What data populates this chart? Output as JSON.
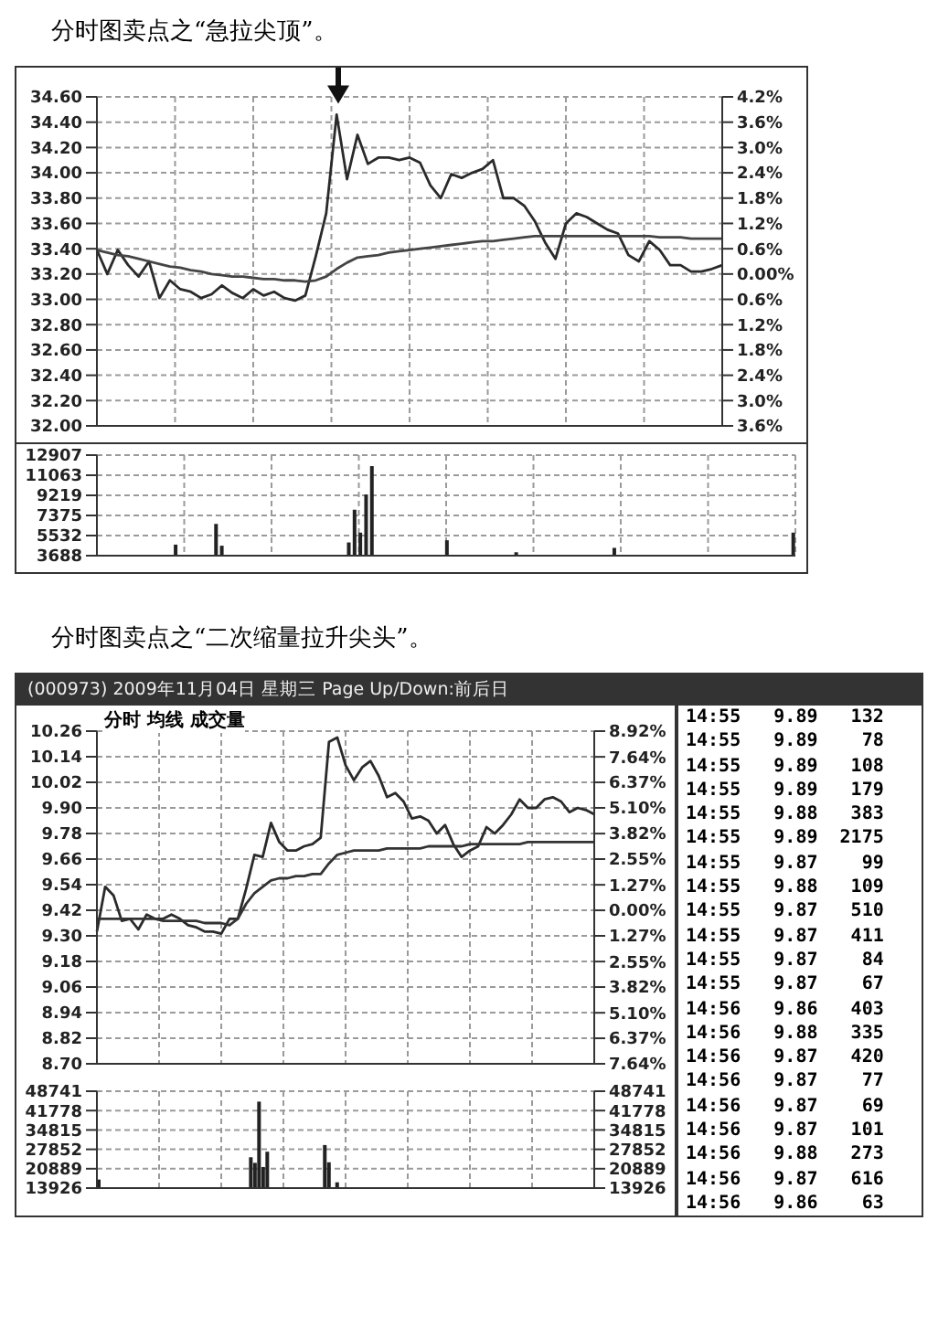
{
  "chart_data": [
    {
      "type": "line",
      "title": "分时图卖点之“急拉尖顶”。",
      "categories": [
        null,
        null,
        null,
        null,
        null,
        null,
        null,
        null,
        null,
        null,
        null,
        null,
        null,
        null,
        null,
        null,
        null,
        null,
        null,
        null,
        null,
        null,
        null,
        null,
        null,
        null,
        null,
        null,
        null,
        null,
        null,
        null,
        null,
        null,
        null,
        null,
        null,
        null,
        null,
        null,
        null,
        null,
        null,
        null,
        null,
        null,
        null,
        null,
        null,
        null,
        null,
        null,
        null,
        null,
        null,
        null,
        null,
        null,
        null,
        null,
        null
      ],
      "grid": true,
      "ylim": [
        32.0,
        34.6
      ],
      "yticks": [
        {
          "value": 34.6,
          "label": "34.60"
        },
        {
          "value": 34.4,
          "label": "34.40"
        },
        {
          "value": 34.2,
          "label": "34.20"
        },
        {
          "value": 34.0,
          "label": "34.00"
        },
        {
          "value": 33.8,
          "label": "33.80"
        },
        {
          "value": 33.6,
          "label": "33.60"
        },
        {
          "value": 33.4,
          "label": "33.40"
        },
        {
          "value": 33.2,
          "label": "33.20"
        },
        {
          "value": 33.0,
          "label": "33.00"
        },
        {
          "value": 32.8,
          "label": "32.80"
        },
        {
          "value": 32.6,
          "label": "32.60"
        },
        {
          "value": 32.4,
          "label": "32.40"
        },
        {
          "value": 32.2,
          "label": "32.20"
        },
        {
          "value": 32.0,
          "label": "32.00"
        }
      ],
      "y2lim": [
        -3.6,
        4.2
      ],
      "y2ticks": [
        {
          "value": 4.2,
          "label": "4.2%"
        },
        {
          "value": 3.6,
          "label": "3.6%"
        },
        {
          "value": 3.0,
          "label": "3.0%"
        },
        {
          "value": 2.4,
          "label": "2.4%"
        },
        {
          "value": 1.8,
          "label": "1.8%"
        },
        {
          "value": 1.2,
          "label": "1.2%"
        },
        {
          "value": 0.6,
          "label": "0.6%"
        },
        {
          "value": 0,
          "label": "0.00%"
        },
        {
          "value": -0.6,
          "label": "0.6%"
        },
        {
          "value": -1.2,
          "label": "1.2%"
        },
        {
          "value": -1.8,
          "label": "1.8%"
        },
        {
          "value": -2.4,
          "label": "2.4%"
        },
        {
          "value": -3.0,
          "label": "3.0%"
        },
        {
          "value": -3.6,
          "label": "3.6%"
        }
      ],
      "series": [
        {
          "color": "#2a2a2a",
          "values": [
            33.39,
            33.2,
            33.39,
            33.27,
            33.18,
            33.3,
            33.01,
            33.15,
            33.08,
            33.06,
            33.01,
            33.04,
            33.11,
            33.05,
            33.01,
            33.08,
            33.03,
            33.06,
            33.01,
            32.99,
            33.03,
            33.34,
            33.68,
            34.46,
            33.95,
            34.3,
            34.07,
            34.12,
            34.12,
            34.1,
            34.12,
            34.08,
            33.9,
            33.8,
            33.99,
            33.96,
            34.0,
            34.03,
            34.1,
            33.8,
            33.8,
            33.74,
            33.62,
            33.45,
            33.32,
            33.6,
            33.68,
            33.65,
            33.6,
            33.55,
            33.52,
            33.35,
            33.3,
            33.46,
            33.39,
            33.27,
            33.27,
            33.22,
            33.22,
            33.24,
            33.27
          ]
        },
        {
          "color": "#444444",
          "values": [
            33.39,
            33.37,
            33.35,
            33.34,
            33.32,
            33.3,
            33.28,
            33.26,
            33.25,
            33.23,
            33.22,
            33.2,
            33.19,
            33.18,
            33.18,
            33.17,
            33.16,
            33.16,
            33.15,
            33.15,
            33.14,
            33.15,
            33.18,
            33.24,
            33.29,
            33.33,
            33.34,
            33.35,
            33.37,
            33.38,
            33.39,
            33.4,
            33.41,
            33.42,
            33.43,
            33.44,
            33.45,
            33.46,
            33.46,
            33.47,
            33.48,
            33.49,
            33.5,
            33.5,
            33.5,
            33.5,
            33.5,
            33.5,
            33.5,
            33.5,
            33.5,
            33.5,
            33.5,
            33.5,
            33.49,
            33.49,
            33.49,
            33.48,
            33.48,
            33.48,
            33.48
          ]
        }
      ]
    },
    {
      "type": "bar",
      "categories": [
        null,
        null,
        null,
        null,
        null,
        null,
        null,
        null,
        null,
        null,
        null,
        null,
        null,
        null,
        null,
        null,
        null,
        null,
        null,
        null,
        null,
        null,
        null,
        null,
        null,
        null,
        null,
        null,
        null,
        null,
        null,
        null,
        null,
        null,
        null,
        null,
        null,
        null,
        null,
        null,
        null,
        null,
        null,
        null,
        null,
        null,
        null,
        null,
        null,
        null,
        null,
        null,
        null,
        null,
        null,
        null,
        null,
        null,
        null,
        null,
        null,
        null,
        null,
        null,
        null,
        null,
        null,
        null,
        null,
        null,
        null,
        null,
        null,
        null,
        null,
        null,
        null,
        null,
        null,
        null,
        null,
        null,
        null,
        null,
        null,
        null,
        null,
        null,
        null,
        null,
        null,
        null,
        null,
        null,
        null,
        null,
        null,
        null,
        null,
        null,
        null,
        null,
        null,
        null,
        null,
        null,
        null,
        null,
        null,
        null,
        null,
        null,
        null,
        null,
        null,
        null,
        null,
        null,
        null,
        null,
        null
      ],
      "values": [
        null,
        null,
        null,
        null,
        null,
        null,
        null,
        null,
        null,
        null,
        null,
        null,
        null,
        4700,
        null,
        null,
        null,
        null,
        null,
        null,
        6600,
        4600,
        null,
        null,
        null,
        null,
        null,
        null,
        null,
        null,
        null,
        null,
        null,
        null,
        null,
        null,
        null,
        null,
        null,
        null,
        null,
        null,
        null,
        4900,
        7900,
        5800,
        9300,
        11900,
        null,
        null,
        null,
        null,
        null,
        null,
        null,
        null,
        null,
        null,
        null,
        null,
        5100,
        null,
        null,
        null,
        null,
        null,
        null,
        null,
        null,
        null,
        null,
        null,
        4000,
        null,
        null,
        null,
        null,
        null,
        null,
        null,
        null,
        null,
        null,
        null,
        null,
        null,
        null,
        null,
        null,
        4400,
        null,
        null,
        null,
        null,
        null,
        null,
        null,
        null,
        null,
        null,
        null,
        null,
        null,
        null,
        null,
        null,
        null,
        null,
        null,
        null,
        null,
        null,
        null,
        null,
        null,
        null,
        null,
        null,
        null,
        null,
        5800
      ],
      "color": "#222222",
      "grid": true,
      "ylim": [
        3688,
        12907
      ],
      "yticks": [
        3688,
        5532,
        7375,
        9219,
        11063,
        12907
      ]
    },
    {
      "type": "line",
      "title": "分时图卖点之“二次缩量拉升尖头”。",
      "subtitle": "(000973) 2009年11月04日 星期三 Page Up/Down:前后日",
      "annotations": [
        "分时 均线 成交量"
      ],
      "categories": [
        null,
        null,
        null,
        null,
        null,
        null,
        null,
        null,
        null,
        null,
        null,
        null,
        null,
        null,
        null,
        null,
        null,
        null,
        null,
        null,
        null,
        null,
        null,
        null,
        null,
        null,
        null,
        null,
        null,
        null,
        null,
        null,
        null,
        null,
        null,
        null,
        null,
        null,
        null,
        null,
        null,
        null,
        null,
        null,
        null,
        null,
        null,
        null,
        null,
        null,
        null,
        null,
        null,
        null,
        null,
        null,
        null,
        null,
        null,
        null,
        null
      ],
      "grid": true,
      "ylim": [
        8.7,
        10.26
      ],
      "yticks": [
        {
          "value": 10.26,
          "label": "10.26"
        },
        {
          "value": 10.14,
          "label": "10.14"
        },
        {
          "value": 10.02,
          "label": "10.02"
        },
        {
          "value": 9.9,
          "label": "9.90"
        },
        {
          "value": 9.78,
          "label": "9.78"
        },
        {
          "value": 9.66,
          "label": "9.66"
        },
        {
          "value": 9.54,
          "label": "9.54"
        },
        {
          "value": 9.42,
          "label": "9.42"
        },
        {
          "value": 9.3,
          "label": "9.30"
        },
        {
          "value": 9.18,
          "label": "9.18"
        },
        {
          "value": 9.06,
          "label": "9.06"
        },
        {
          "value": 8.94,
          "label": "8.94"
        },
        {
          "value": 8.82,
          "label": "8.82"
        },
        {
          "value": 8.7,
          "label": "8.70"
        }
      ],
      "y2lim": [
        -7.64,
        8.92
      ],
      "y2ticks": [
        {
          "value": 8.92,
          "label": "8.92%"
        },
        {
          "value": 7.64,
          "label": "7.64%"
        },
        {
          "value": 6.37,
          "label": "6.37%"
        },
        {
          "value": 5.1,
          "label": "5.10%"
        },
        {
          "value": 3.82,
          "label": "3.82%"
        },
        {
          "value": 2.55,
          "label": "2.55%"
        },
        {
          "value": 1.27,
          "label": "1.27%"
        },
        {
          "value": 0,
          "label": "0.00%"
        },
        {
          "value": -1.27,
          "label": "1.27%"
        },
        {
          "value": -2.55,
          "label": "2.55%"
        },
        {
          "value": -3.82,
          "label": "3.82%"
        },
        {
          "value": -5.1,
          "label": "5.10%"
        },
        {
          "value": -6.37,
          "label": "6.37%"
        },
        {
          "value": -7.64,
          "label": "7.64%"
        }
      ],
      "series": [
        {
          "color": "#2a2a2a",
          "values": [
            9.32,
            9.53,
            9.49,
            9.37,
            9.38,
            9.33,
            9.4,
            9.38,
            9.38,
            9.4,
            9.38,
            9.35,
            9.34,
            9.32,
            9.32,
            9.31,
            9.38,
            9.38,
            9.52,
            9.68,
            9.67,
            9.83,
            9.74,
            9.7,
            9.7,
            9.72,
            9.73,
            9.76,
            10.21,
            10.23,
            10.1,
            10.03,
            10.09,
            10.12,
            10.05,
            9.95,
            9.97,
            9.93,
            9.85,
            9.86,
            9.84,
            9.78,
            9.82,
            9.73,
            9.67,
            9.7,
            9.72,
            9.81,
            9.78,
            9.82,
            9.87,
            9.94,
            9.9,
            9.9,
            9.94,
            9.95,
            9.93,
            9.88,
            9.9,
            9.89,
            9.87
          ]
        },
        {
          "color": "#333333",
          "values": [
            9.38,
            9.38,
            9.38,
            9.38,
            9.38,
            9.38,
            9.38,
            9.38,
            9.37,
            9.37,
            9.37,
            9.37,
            9.37,
            9.36,
            9.36,
            9.36,
            9.35,
            9.38,
            9.45,
            9.5,
            9.53,
            9.56,
            9.57,
            9.57,
            9.58,
            9.58,
            9.59,
            9.59,
            9.64,
            9.68,
            9.69,
            9.7,
            9.7,
            9.7,
            9.7,
            9.71,
            9.71,
            9.71,
            9.71,
            9.71,
            9.72,
            9.72,
            9.72,
            9.72,
            9.72,
            9.73,
            9.73,
            9.73,
            9.73,
            9.73,
            9.73,
            9.73,
            9.74,
            9.74,
            9.74,
            9.74,
            9.74,
            9.74,
            9.74,
            9.74,
            9.74
          ]
        }
      ]
    },
    {
      "type": "bar",
      "categories": [
        null,
        null,
        null,
        null,
        null,
        null,
        null,
        null,
        null,
        null,
        null,
        null,
        null,
        null,
        null,
        null,
        null,
        null,
        null,
        null,
        null,
        null,
        null,
        null,
        null,
        null,
        null,
        null,
        null,
        null,
        null,
        null,
        null,
        null,
        null,
        null,
        null,
        null,
        null,
        null,
        null,
        null,
        null,
        null,
        null,
        null,
        null,
        null,
        null,
        null,
        null,
        null,
        null,
        null,
        null,
        null,
        null,
        null,
        null,
        null,
        null,
        null,
        null,
        null,
        null,
        null,
        null,
        null,
        null,
        null,
        null,
        null,
        null,
        null,
        null,
        null,
        null,
        null,
        null,
        null,
        null,
        null,
        null,
        null,
        null,
        null,
        null,
        null,
        null,
        null,
        null,
        null,
        null,
        null,
        null,
        null,
        null,
        null,
        null,
        null,
        null,
        null,
        null,
        null,
        null,
        null,
        null,
        null,
        null,
        null,
        null,
        null,
        null,
        null,
        null,
        null,
        null,
        null,
        null,
        null,
        null
      ],
      "values": [
        17000,
        null,
        null,
        null,
        null,
        null,
        null,
        null,
        null,
        null,
        null,
        null,
        null,
        null,
        null,
        null,
        null,
        null,
        null,
        null,
        null,
        null,
        null,
        null,
        null,
        null,
        null,
        null,
        null,
        null,
        null,
        null,
        null,
        null,
        null,
        null,
        null,
        25000,
        23000,
        45000,
        21500,
        27000,
        null,
        null,
        null,
        null,
        null,
        null,
        null,
        null,
        null,
        null,
        null,
        null,
        null,
        29400,
        23200,
        null,
        16000,
        null,
        null,
        null,
        null,
        null,
        null,
        null,
        null,
        null,
        null,
        null,
        null,
        null,
        null,
        null,
        null,
        null,
        null,
        null,
        null,
        null,
        null,
        null,
        null,
        null,
        null,
        null,
        null,
        null,
        null,
        null,
        null,
        null,
        null,
        null,
        null,
        null,
        null,
        null,
        null,
        null,
        null,
        null,
        null,
        null,
        null,
        null,
        null,
        null,
        null,
        null,
        null,
        null,
        null,
        null,
        null,
        null,
        null,
        null,
        null,
        null,
        null
      ],
      "color": "#222222",
      "grid": true,
      "ylim": [
        13926,
        48741
      ],
      "yticks": [
        13926,
        20889,
        27852,
        34815,
        41778,
        48741
      ],
      "y2lim": [
        13926,
        48741
      ],
      "y2ticks": [
        13926,
        20889,
        27852,
        34815,
        41778,
        48741
      ]
    },
    {
      "type": "other",
      "annotations": [
        "14:55 9.89 132",
        "14:55 9.89 78",
        "14:55 9.89 108",
        "14:55 9.89 179",
        "14:55 9.88 383",
        "14:55 9.89 2175",
        "14:55 9.87 99",
        "14:55 9.88 109",
        "14:55 9.87 510",
        "14:55 9.87 411",
        "14:55 9.87 84",
        "14:55 9.87 67",
        "14:56 9.86 403",
        "14:56 9.88 335",
        "14:56 9.87 420",
        "14:56 9.87 77",
        "14:56 9.87 69",
        "14:56 9.87 101",
        "14:56 9.88 273",
        "14:56 9.87 616",
        "14:56 9.86 63"
      ]
    }
  ]
}
